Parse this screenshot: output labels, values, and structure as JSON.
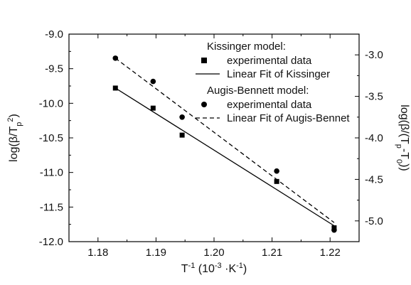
{
  "chart_data": {
    "type": "scatter",
    "xlabel": {
      "base": "T",
      "sup": "-1",
      "units_open": " (10",
      "units_sup": "-3",
      "units_mid": " ·K",
      "units_sup2": "-1",
      "units_close": ")"
    },
    "ylabel_left": {
      "open": "log(β/T",
      "sub": "p",
      "sup": "2",
      "close": ")"
    },
    "ylabel_right": {
      "open": "log(β/(T",
      "sub1": "p",
      "mid": "-T",
      "sub2": "0",
      "close": "))"
    },
    "xlim": [
      1.175,
      1.225
    ],
    "ylim_left": [
      -12.0,
      -9.0
    ],
    "ylim_right": [
      -5.25,
      -2.75
    ],
    "x_ticks": [
      "1.18",
      "1.19",
      "1.20",
      "1.21",
      "1.22"
    ],
    "y_left_ticks": [
      "-9.0",
      "-9.5",
      "-10.0",
      "-10.5",
      "-11.0",
      "-11.5",
      "-12.0"
    ],
    "y_right_ticks": [
      "-3.0",
      "-3.5",
      "-4.0",
      "-4.5",
      "-5.0"
    ],
    "legend": {
      "groups": [
        {
          "title": "Kissinger model:",
          "entries": [
            {
              "marker": "square",
              "label": "experimental data"
            },
            {
              "line": "solid",
              "label": "Linear Fit of Kissinger"
            }
          ]
        },
        {
          "title": "Augis-Bennett model:",
          "entries": [
            {
              "marker": "circle",
              "label": "experimental data"
            },
            {
              "line": "dashed",
              "label": "Linear Fit of Augis-Bennet"
            }
          ]
        }
      ],
      "position": "top-right"
    },
    "series": [
      {
        "marker": "square",
        "axis": "left",
        "x": [
          1.183,
          1.1895,
          1.1945,
          1.2108,
          1.2207
        ],
        "y": [
          -9.78,
          -10.07,
          -10.46,
          -11.13,
          -11.8
        ]
      },
      {
        "line": "solid",
        "axis": "left",
        "x": [
          1.183,
          1.2207
        ],
        "y": [
          -9.78,
          -11.77
        ]
      },
      {
        "marker": "circle",
        "axis": "right",
        "x": [
          1.183,
          1.1895,
          1.1945,
          1.2108,
          1.2207
        ],
        "y": [
          -3.04,
          -3.32,
          -3.75,
          -4.4,
          -5.11
        ]
      },
      {
        "line": "dashed",
        "axis": "right",
        "x": [
          1.183,
          1.2207
        ],
        "y": [
          -3.04,
          -5.02
        ]
      }
    ]
  }
}
